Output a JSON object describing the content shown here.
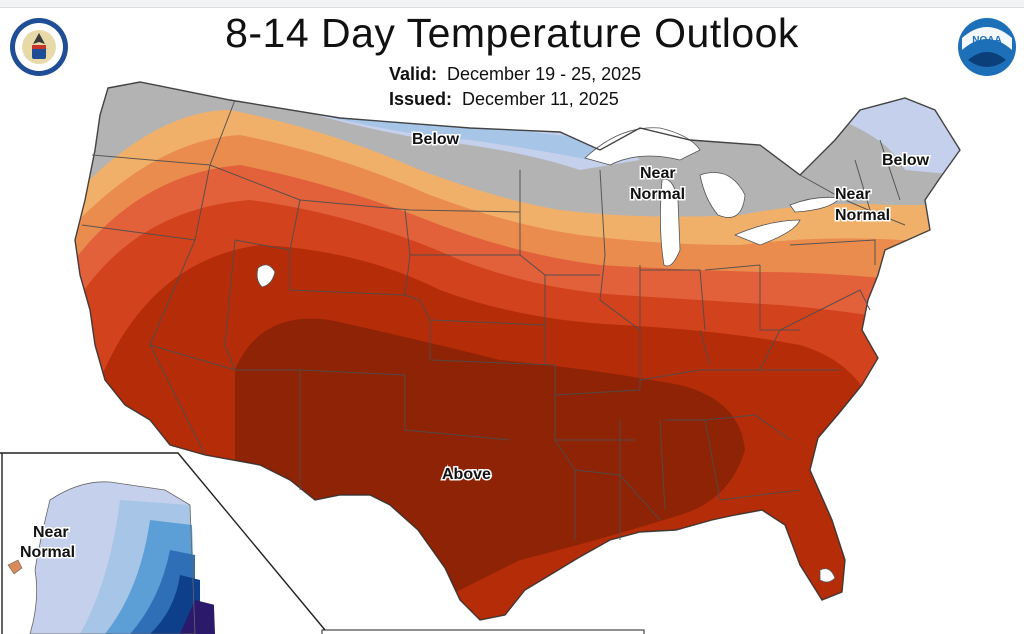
{
  "title": "8-14 Day Temperature Outlook",
  "valid": {
    "label": "Valid:",
    "value": "December 19 - 25, 2025"
  },
  "issued": {
    "label": "Issued:",
    "value": "December 11, 2025"
  },
  "logos": {
    "noaa_text": "NOAA"
  },
  "region_labels": {
    "north_plains": "Below",
    "great_lakes_1": "Near",
    "great_lakes_2": "Normal",
    "northeast_below": "Below",
    "northeast_near_1": "Near",
    "northeast_near_2": "Normal",
    "south": "Above",
    "alaska_1": "Near",
    "alaska_2": "Normal"
  },
  "categories": [
    {
      "name": "Above",
      "color": "#8f2305"
    },
    {
      "name": "Above",
      "color": "#b52c08"
    },
    {
      "name": "Above",
      "color": "#d2421c"
    },
    {
      "name": "Above",
      "color": "#e2603a"
    },
    {
      "name": "Above",
      "color": "#ea8c4e"
    },
    {
      "name": "Above",
      "color": "#f1b06a"
    },
    {
      "name": "Near Normal",
      "color": "#b3b3b3"
    },
    {
      "name": "Below",
      "color": "#c5d0ec"
    },
    {
      "name": "Below",
      "color": "#a7c5e6"
    },
    {
      "name": "Below",
      "color": "#5c9fd6"
    },
    {
      "name": "Below",
      "color": "#2f6fb8"
    },
    {
      "name": "Below",
      "color": "#0d3f8a"
    },
    {
      "name": "Below",
      "color": "#2b1a6b"
    }
  ]
}
